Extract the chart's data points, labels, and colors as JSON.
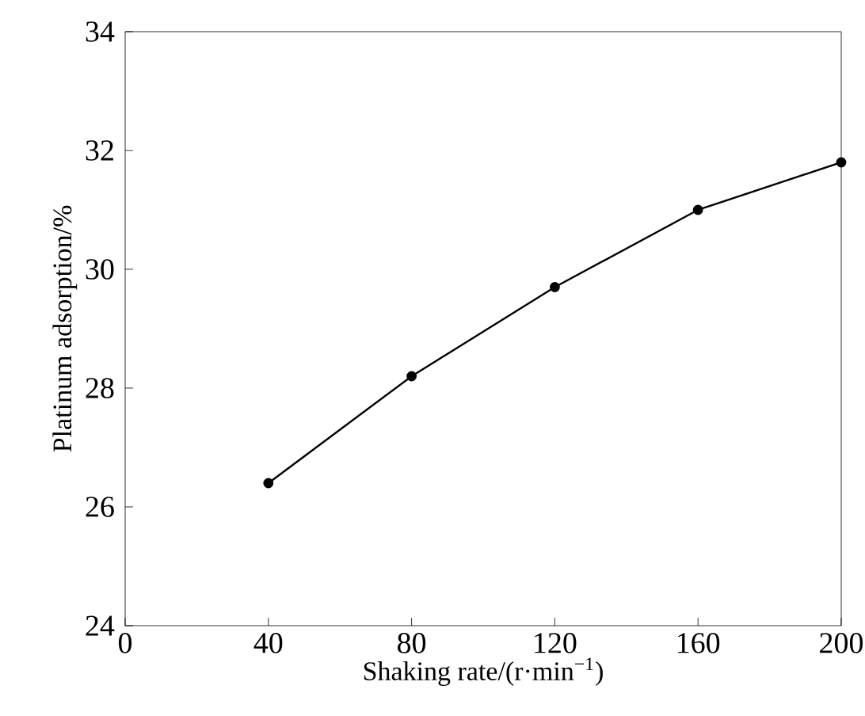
{
  "chart_data": {
    "type": "line",
    "xlabel": "Shaking rate/(r·min$^{−1}$)",
    "ylabel": "Platinum adsorption/%",
    "x": [
      40,
      80,
      120,
      160,
      200
    ],
    "series": [
      {
        "color": "#000000",
        "values": [
          26.4,
          28.2,
          29.7,
          31.0,
          31.8
        ]
      }
    ],
    "xlim": [
      0,
      200
    ],
    "ylim": [
      24,
      34
    ],
    "xticks": [
      0,
      40,
      80,
      120,
      160,
      200
    ],
    "yticks": [
      24,
      26,
      28,
      30,
      32,
      34
    ],
    "grid": false,
    "marker": "circle",
    "line_style": "solid"
  }
}
